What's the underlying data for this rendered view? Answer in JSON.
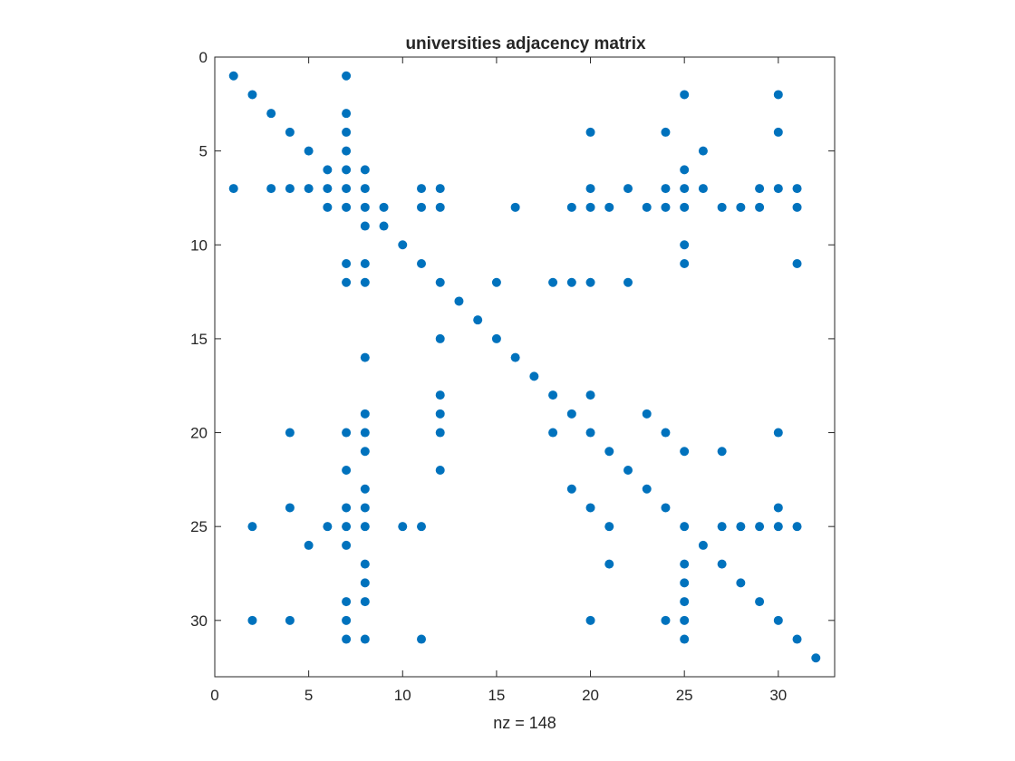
{
  "chart_data": {
    "type": "scatter",
    "title": "universities adjacency matrix",
    "xlabel": "nz = 148",
    "ylabel": "",
    "xlim": [
      0,
      33
    ],
    "ylim": [
      33,
      0
    ],
    "y_reversed": true,
    "x_ticks": [
      0,
      5,
      10,
      15,
      20,
      25,
      30
    ],
    "y_ticks": [
      0,
      5,
      10,
      15,
      20,
      25,
      30
    ],
    "grid": false,
    "legend": "none",
    "marker_color": "#0072BD",
    "points": [
      [
        1,
        1
      ],
      [
        7,
        1
      ],
      [
        2,
        2
      ],
      [
        25,
        2
      ],
      [
        30,
        2
      ],
      [
        3,
        3
      ],
      [
        7,
        3
      ],
      [
        4,
        4
      ],
      [
        7,
        4
      ],
      [
        20,
        4
      ],
      [
        24,
        4
      ],
      [
        30,
        4
      ],
      [
        5,
        5
      ],
      [
        7,
        5
      ],
      [
        26,
        5
      ],
      [
        6,
        6
      ],
      [
        7,
        6
      ],
      [
        8,
        6
      ],
      [
        25,
        6
      ],
      [
        1,
        7
      ],
      [
        3,
        7
      ],
      [
        4,
        7
      ],
      [
        5,
        7
      ],
      [
        6,
        7
      ],
      [
        7,
        7
      ],
      [
        8,
        7
      ],
      [
        11,
        7
      ],
      [
        12,
        7
      ],
      [
        20,
        7
      ],
      [
        22,
        7
      ],
      [
        24,
        7
      ],
      [
        25,
        7
      ],
      [
        26,
        7
      ],
      [
        29,
        7
      ],
      [
        30,
        7
      ],
      [
        31,
        7
      ],
      [
        6,
        8
      ],
      [
        7,
        8
      ],
      [
        8,
        8
      ],
      [
        9,
        8
      ],
      [
        11,
        8
      ],
      [
        12,
        8
      ],
      [
        16,
        8
      ],
      [
        19,
        8
      ],
      [
        20,
        8
      ],
      [
        21,
        8
      ],
      [
        23,
        8
      ],
      [
        24,
        8
      ],
      [
        25,
        8
      ],
      [
        27,
        8
      ],
      [
        28,
        8
      ],
      [
        29,
        8
      ],
      [
        31,
        8
      ],
      [
        8,
        9
      ],
      [
        9,
        9
      ],
      [
        10,
        10
      ],
      [
        25,
        10
      ],
      [
        7,
        11
      ],
      [
        8,
        11
      ],
      [
        11,
        11
      ],
      [
        25,
        11
      ],
      [
        31,
        11
      ],
      [
        7,
        12
      ],
      [
        8,
        12
      ],
      [
        12,
        12
      ],
      [
        15,
        12
      ],
      [
        18,
        12
      ],
      [
        19,
        12
      ],
      [
        20,
        12
      ],
      [
        22,
        12
      ],
      [
        13,
        13
      ],
      [
        14,
        14
      ],
      [
        12,
        15
      ],
      [
        15,
        15
      ],
      [
        8,
        16
      ],
      [
        16,
        16
      ],
      [
        17,
        17
      ],
      [
        12,
        18
      ],
      [
        18,
        18
      ],
      [
        20,
        18
      ],
      [
        8,
        19
      ],
      [
        12,
        19
      ],
      [
        19,
        19
      ],
      [
        23,
        19
      ],
      [
        4,
        20
      ],
      [
        7,
        20
      ],
      [
        8,
        20
      ],
      [
        12,
        20
      ],
      [
        18,
        20
      ],
      [
        20,
        20
      ],
      [
        24,
        20
      ],
      [
        30,
        20
      ],
      [
        8,
        21
      ],
      [
        21,
        21
      ],
      [
        25,
        21
      ],
      [
        27,
        21
      ],
      [
        7,
        22
      ],
      [
        12,
        22
      ],
      [
        22,
        22
      ],
      [
        8,
        23
      ],
      [
        19,
        23
      ],
      [
        23,
        23
      ],
      [
        4,
        24
      ],
      [
        7,
        24
      ],
      [
        8,
        24
      ],
      [
        20,
        24
      ],
      [
        24,
        24
      ],
      [
        30,
        24
      ],
      [
        2,
        25
      ],
      [
        6,
        25
      ],
      [
        7,
        25
      ],
      [
        8,
        25
      ],
      [
        10,
        25
      ],
      [
        11,
        25
      ],
      [
        21,
        25
      ],
      [
        25,
        25
      ],
      [
        27,
        25
      ],
      [
        28,
        25
      ],
      [
        29,
        25
      ],
      [
        30,
        25
      ],
      [
        31,
        25
      ],
      [
        5,
        26
      ],
      [
        7,
        26
      ],
      [
        26,
        26
      ],
      [
        8,
        27
      ],
      [
        21,
        27
      ],
      [
        25,
        27
      ],
      [
        27,
        27
      ],
      [
        8,
        28
      ],
      [
        25,
        28
      ],
      [
        28,
        28
      ],
      [
        7,
        29
      ],
      [
        8,
        29
      ],
      [
        25,
        29
      ],
      [
        29,
        29
      ],
      [
        2,
        30
      ],
      [
        4,
        30
      ],
      [
        7,
        30
      ],
      [
        20,
        30
      ],
      [
        24,
        30
      ],
      [
        25,
        30
      ],
      [
        30,
        30
      ],
      [
        7,
        31
      ],
      [
        8,
        31
      ],
      [
        11,
        31
      ],
      [
        25,
        31
      ],
      [
        31,
        31
      ],
      [
        32,
        32
      ]
    ]
  }
}
